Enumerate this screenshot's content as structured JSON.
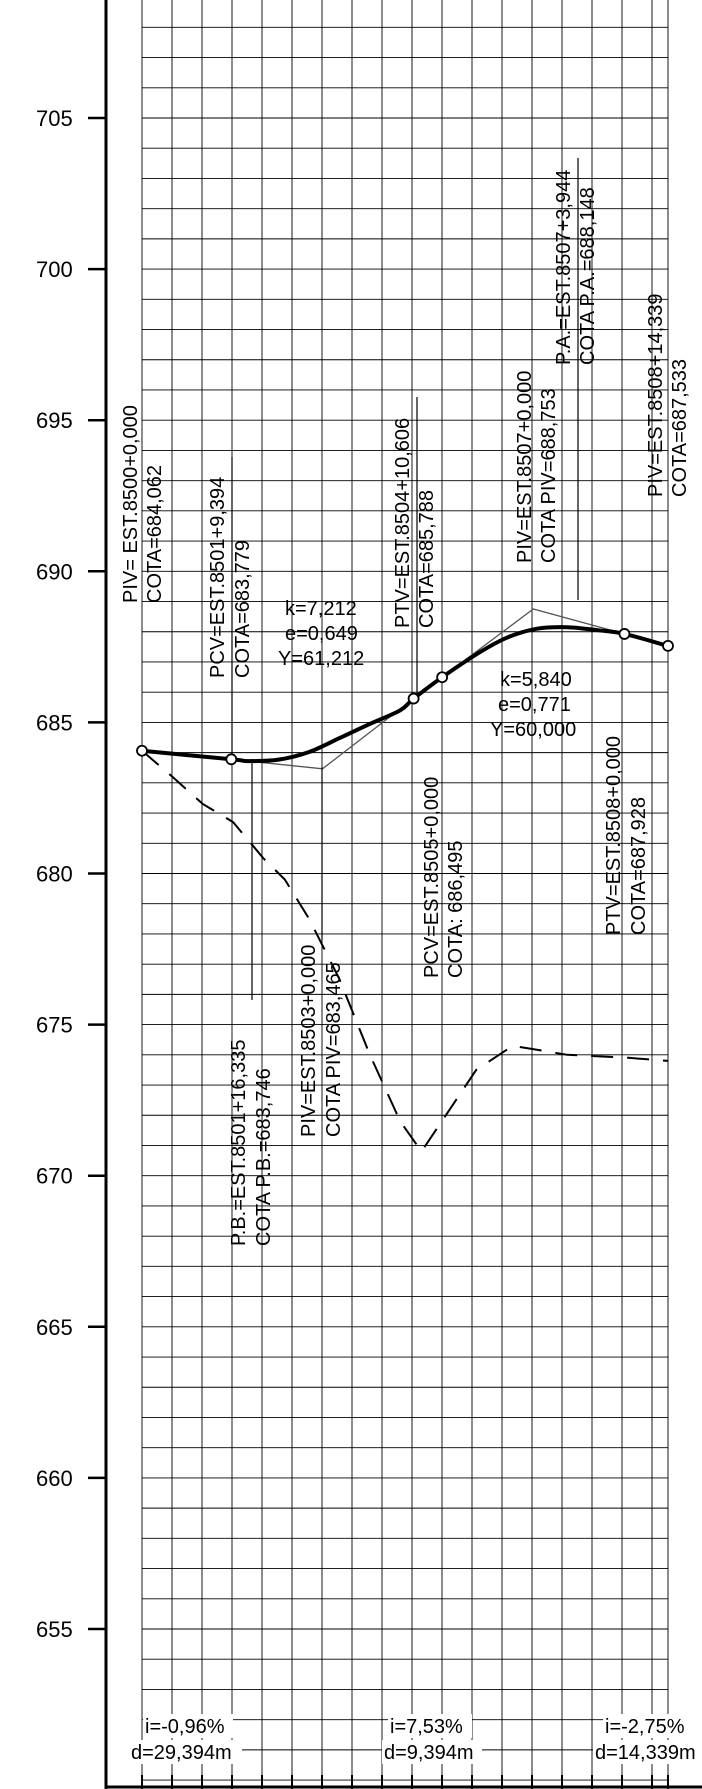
{
  "y_axis": {
    "ticks": [
      "705",
      "700",
      "695",
      "690",
      "685",
      "680",
      "675",
      "670",
      "665",
      "660",
      "655"
    ],
    "grid_step_m": 1
  },
  "grade_lines": [
    {
      "points": [
        [
          0,
          684.062
        ],
        [
          29.394,
          683.779
        ]
      ]
    },
    {
      "points": [
        [
          29.394,
          683.779
        ],
        [
          59.394,
          683.465
        ],
        [
          89.394,
          685.788
        ]
      ]
    },
    {
      "points": [
        [
          89.394,
          685.788
        ],
        [
          98.788,
          686.495
        ],
        [
          128.788,
          688.753
        ],
        [
          158.788,
          687.928
        ],
        [
          173.127,
          687.533
        ]
      ]
    }
  ],
  "profile": {
    "points": [
      [
        0,
        684.062
      ],
      [
        29.394,
        683.779
      ],
      [
        35,
        683.72
      ],
      [
        45,
        683.77
      ],
      [
        55,
        684.02
      ],
      [
        65,
        684.48
      ],
      [
        75,
        684.95
      ],
      [
        85,
        685.4
      ],
      [
        89.394,
        685.788
      ],
      [
        98.788,
        686.495
      ],
      [
        110,
        687.25
      ],
      [
        120,
        687.8
      ],
      [
        130,
        688.1
      ],
      [
        140,
        688.15
      ],
      [
        150,
        688.05
      ],
      [
        158.788,
        687.928
      ],
      [
        173.127,
        687.533
      ]
    ]
  },
  "terrain": {
    "points": [
      [
        0,
        684.062
      ],
      [
        10,
        683.2
      ],
      [
        20,
        682.3
      ],
      [
        30,
        681.7
      ],
      [
        40,
        680.5
      ],
      [
        47,
        679.8
      ],
      [
        55,
        678.5
      ],
      [
        65,
        676.5
      ],
      [
        75,
        674.0
      ],
      [
        85,
        671.8
      ],
      [
        92,
        670.8
      ],
      [
        100,
        672.0
      ],
      [
        110,
        673.5
      ],
      [
        122,
        674.3
      ],
      [
        140,
        674.0
      ],
      [
        160,
        673.9
      ],
      [
        173.127,
        673.8
      ]
    ]
  },
  "vertices": [
    {
      "x": 0,
      "y": 684.062
    },
    {
      "x": 29.394,
      "y": 683.779
    },
    {
      "x": 89.394,
      "y": 685.788
    },
    {
      "x": 98.788,
      "y": 686.495
    },
    {
      "x": 158.788,
      "y": 687.928
    },
    {
      "x": 173.127,
      "y": 687.533
    }
  ],
  "labels": {
    "piv1_a": "PIV= EST.8500+0,000",
    "piv1_b": "COTA=684,062",
    "pcv1_a": "PCV=EST.8501+9,394",
    "pcv1_b": "COTA=683,779",
    "k1": "k=7,212",
    "e1": "e=0,649",
    "y1": "Y=61,212",
    "ptv1_a": "PTV=EST.8504+10,606",
    "ptv1_b": "COTA=685,788",
    "piv3_a": "PIV=EST.8507+0,000",
    "piv3_b": "COTA PIV=688,753",
    "pa_a": "P.A.=EST.8507+3,944",
    "pa_b": "COTA P.A.=688,148",
    "piv4_a": "PIV=EST.8508+14,339",
    "piv4_b": "COTA=687,533",
    "k2": "k=5,840",
    "e2": "e=0,771",
    "y2": "Y=60,000",
    "ptv2_a": "PTV=EST.8508+0,000",
    "ptv2_b": "COTA=687,928",
    "pcv2_a": "PCV=EST.8505+0,000",
    "pcv2_b": "COTA: 686,495",
    "piv2_a": "PIV=EST.8503+0,000",
    "piv2_b": "COTA PIV=683,465",
    "pb_a": "P.B.=EST.8501+16,335",
    "pb_b": "COTA P.B.=683,746"
  },
  "footer": {
    "i1": "i=-0,96%",
    "d1": "d=29,394m",
    "i2": "i=7,53%",
    "d2": "d=9,394m",
    "i3": "i=-2,75%",
    "d3": "d=14,339m"
  }
}
